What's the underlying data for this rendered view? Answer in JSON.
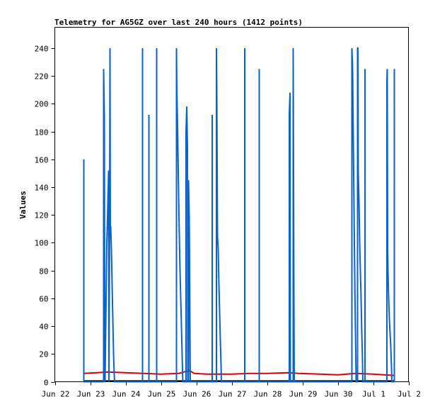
{
  "chart_data": {
    "type": "line",
    "title": "Telemetry for AG5GZ over last 240 hours (1412 points)",
    "xlabel": "",
    "ylabel": "Values",
    "x_ticks": [
      "Jun 22",
      "Jun 23",
      "Jun 24",
      "Jun 25",
      "Jun 26",
      "Jun 27",
      "Jun 28",
      "Jun 29",
      "Jun 30",
      "Jul 1",
      "Jul 2"
    ],
    "x_range_days": [
      0,
      10
    ],
    "y_ticks": [
      0,
      20,
      40,
      60,
      80,
      100,
      120,
      140,
      160,
      180,
      200,
      220,
      240
    ],
    "ylim": [
      0,
      255
    ],
    "grid": false,
    "colors": {
      "blue": "#0a64c8",
      "red": "#dd0000",
      "black": "#000000"
    },
    "series": [
      {
        "color": "#0a64c8",
        "points": [
          [
            0.82,
            0
          ],
          [
            0.82,
            160
          ],
          [
            0.82,
            0
          ],
          [
            1.38,
            0
          ],
          [
            1.38,
            225
          ],
          [
            1.4,
            192
          ],
          [
            1.41,
            40
          ],
          [
            1.42,
            0
          ],
          [
            1.45,
            60
          ],
          [
            1.47,
            100
          ],
          [
            1.49,
            118
          ],
          [
            1.51,
            140
          ],
          [
            1.52,
            152
          ],
          [
            1.53,
            0
          ],
          [
            1.55,
            120
          ],
          [
            1.56,
            240
          ],
          [
            1.57,
            105
          ],
          [
            1.58,
            112
          ],
          [
            1.6,
            95
          ],
          [
            1.62,
            70
          ],
          [
            1.64,
            45
          ],
          [
            1.66,
            20
          ],
          [
            1.68,
            5
          ],
          [
            1.69,
            0
          ],
          [
            2.48,
            0
          ],
          [
            2.48,
            240
          ],
          [
            2.48,
            0
          ],
          [
            2.66,
            0
          ],
          [
            2.66,
            192
          ],
          [
            2.66,
            0
          ],
          [
            2.88,
            0
          ],
          [
            2.88,
            240
          ],
          [
            2.88,
            0
          ],
          [
            3.44,
            0
          ],
          [
            3.44,
            240
          ],
          [
            3.45,
            210
          ],
          [
            3.47,
            185
          ],
          [
            3.49,
            150
          ],
          [
            3.51,
            120
          ],
          [
            3.54,
            80
          ],
          [
            3.57,
            50
          ],
          [
            3.59,
            30
          ],
          [
            3.61,
            8
          ],
          [
            3.62,
            0
          ],
          [
            3.71,
            0
          ],
          [
            3.71,
            180
          ],
          [
            3.73,
            198
          ],
          [
            3.75,
            170
          ],
          [
            3.76,
            0
          ],
          [
            3.78,
            0
          ],
          [
            3.78,
            145
          ],
          [
            3.8,
            120
          ],
          [
            3.81,
            85
          ],
          [
            3.82,
            40
          ],
          [
            3.83,
            0
          ],
          [
            4.45,
            0
          ],
          [
            4.45,
            192
          ],
          [
            4.45,
            0
          ],
          [
            4.57,
            0
          ],
          [
            4.57,
            240
          ],
          [
            4.58,
            208
          ],
          [
            4.6,
            105
          ],
          [
            4.62,
            95
          ],
          [
            4.64,
            70
          ],
          [
            4.66,
            50
          ],
          [
            4.68,
            30
          ],
          [
            4.7,
            12
          ],
          [
            4.71,
            0
          ],
          [
            5.37,
            0
          ],
          [
            5.37,
            240
          ],
          [
            5.37,
            0
          ],
          [
            5.78,
            0
          ],
          [
            5.78,
            225
          ],
          [
            5.78,
            0
          ],
          [
            6.63,
            0
          ],
          [
            6.63,
            192
          ],
          [
            6.65,
            208
          ],
          [
            6.66,
            0
          ],
          [
            6.74,
            0
          ],
          [
            6.74,
            240
          ],
          [
            6.76,
            65
          ],
          [
            6.77,
            0
          ],
          [
            8.4,
            0
          ],
          [
            8.4,
            240
          ],
          [
            8.42,
            225
          ],
          [
            8.43,
            200
          ],
          [
            8.45,
            150
          ],
          [
            8.47,
            100
          ],
          [
            8.49,
            55
          ],
          [
            8.51,
            20
          ],
          [
            8.52,
            0
          ],
          [
            8.56,
            0
          ],
          [
            8.56,
            240
          ],
          [
            8.57,
            240
          ],
          [
            8.58,
            150
          ],
          [
            8.6,
            130
          ],
          [
            8.62,
            100
          ],
          [
            8.64,
            80
          ],
          [
            8.66,
            60
          ],
          [
            8.68,
            35
          ],
          [
            8.7,
            15
          ],
          [
            8.71,
            0
          ],
          [
            8.77,
            0
          ],
          [
            8.77,
            225
          ],
          [
            8.77,
            0
          ],
          [
            9.39,
            0
          ],
          [
            9.39,
            217
          ],
          [
            9.4,
            225
          ],
          [
            9.41,
            95
          ],
          [
            9.42,
            80
          ],
          [
            9.44,
            60
          ],
          [
            9.46,
            45
          ],
          [
            9.48,
            35
          ],
          [
            9.5,
            25
          ],
          [
            9.52,
            10
          ],
          [
            9.53,
            0
          ],
          [
            9.6,
            0
          ],
          [
            9.6,
            225
          ],
          [
            9.6,
            0
          ]
        ]
      },
      {
        "color": "#dd0000",
        "points": [
          [
            0.82,
            6
          ],
          [
            1.2,
            6.5
          ],
          [
            1.5,
            7
          ],
          [
            2.0,
            6.5
          ],
          [
            2.5,
            6
          ],
          [
            3.0,
            5.5
          ],
          [
            3.5,
            6
          ],
          [
            3.8,
            8
          ],
          [
            3.95,
            6
          ],
          [
            4.3,
            5.5
          ],
          [
            5.0,
            5.5
          ],
          [
            5.5,
            6
          ],
          [
            6.0,
            6
          ],
          [
            6.6,
            6.5
          ],
          [
            6.9,
            6
          ],
          [
            7.5,
            5.5
          ],
          [
            8.0,
            5
          ],
          [
            8.5,
            6
          ],
          [
            9.0,
            5.5
          ],
          [
            9.6,
            4.5
          ]
        ]
      },
      {
        "color": "#000000",
        "points": [
          [
            0.82,
            0.6
          ],
          [
            9.6,
            0.6
          ]
        ]
      }
    ]
  }
}
